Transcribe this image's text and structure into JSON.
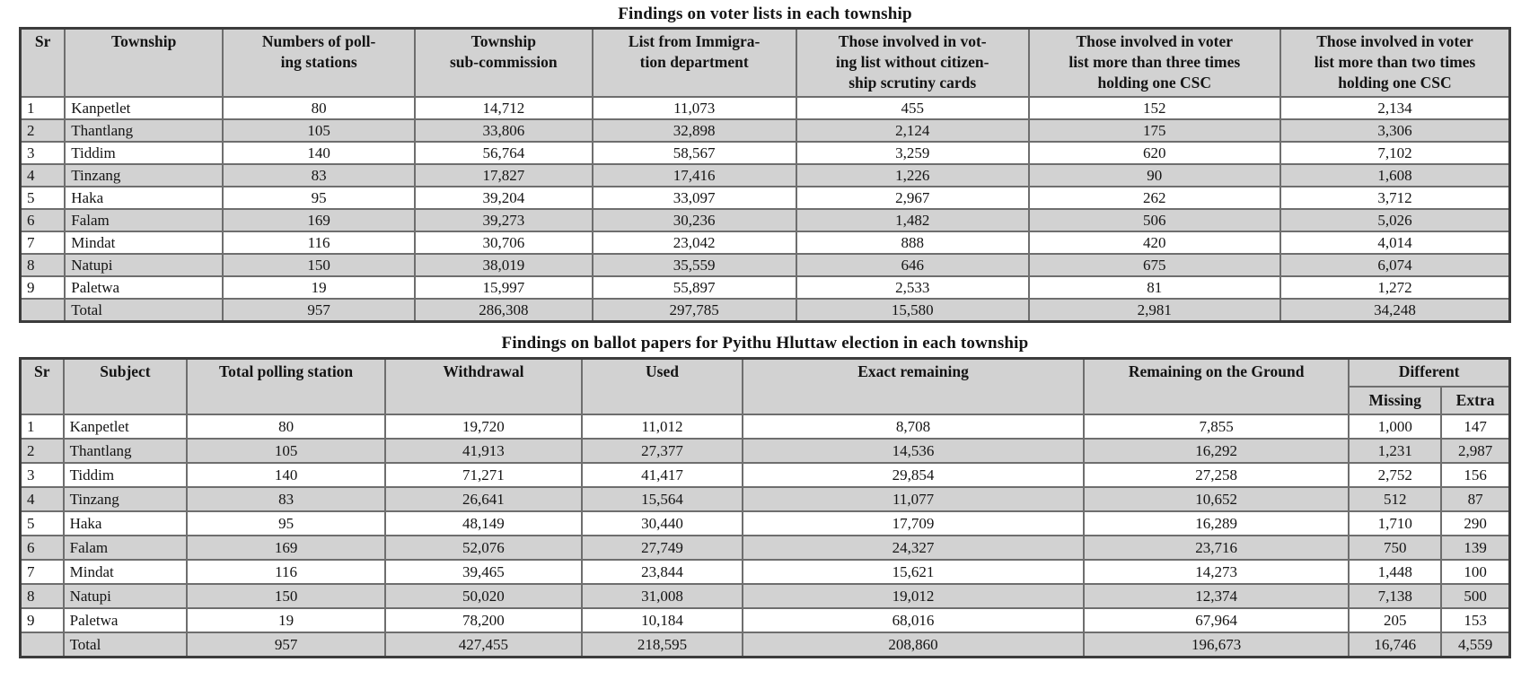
{
  "colors": {
    "page_background": "#ffffff",
    "header_background": "#d2d2d2",
    "stripe_background": "#d2d2d2",
    "inner_border": "#6e6e6e",
    "outer_border": "#3c3c3c",
    "text": "#141414"
  },
  "voter_table": {
    "title": "Findings on voter lists in each township",
    "headers": [
      "Sr",
      "Township",
      "Numbers of poll-\ning stations",
      "Township\nsub-commission",
      "List from Immigra-\ntion department",
      "Those involved in vot-\ning list without citizen-\nship scrutiny cards",
      "Those involved in voter\nlist more than three times\nholding one CSC",
      "Those involved in voter\nlist more than two times\nholding one CSC"
    ],
    "rows": [
      [
        "1",
        "Kanpetlet",
        "80",
        "14,712",
        "11,073",
        "455",
        "152",
        "2,134"
      ],
      [
        "2",
        "Thantlang",
        "105",
        "33,806",
        "32,898",
        "2,124",
        "175",
        "3,306"
      ],
      [
        "3",
        "Tiddim",
        "140",
        "56,764",
        "58,567",
        "3,259",
        "620",
        "7,102"
      ],
      [
        "4",
        "Tinzang",
        "83",
        "17,827",
        "17,416",
        "1,226",
        "90",
        "1,608"
      ],
      [
        "5",
        "Haka",
        "95",
        "39,204",
        "33,097",
        "2,967",
        "262",
        "3,712"
      ],
      [
        "6",
        "Falam",
        "169",
        "39,273",
        "30,236",
        "1,482",
        "506",
        "5,026"
      ],
      [
        "7",
        "Mindat",
        "116",
        "30,706",
        "23,042",
        "888",
        "420",
        "4,014"
      ],
      [
        "8",
        "Natupi",
        "150",
        "38,019",
        "35,559",
        "646",
        "675",
        "6,074"
      ],
      [
        "9",
        "Paletwa",
        "19",
        "15,997",
        "55,897",
        "2,533",
        "81",
        "1,272"
      ]
    ],
    "total_row": [
      "",
      "Total",
      "957",
      "286,308",
      "297,785",
      "15,580",
      "2,981",
      "34,248"
    ]
  },
  "ballot_table": {
    "title": "Findings on ballot papers for Pyithu Hluttaw election in each township",
    "headers_row1": [
      "Sr",
      "Subject",
      "Total polling station",
      "Withdrawal",
      "Used",
      "Exact remaining",
      "Remaining on the Ground",
      "Different"
    ],
    "headers_row2": [
      "Missing",
      "Extra"
    ],
    "rows": [
      [
        "1",
        "Kanpetlet",
        "80",
        "19,720",
        "11,012",
        "8,708",
        "7,855",
        "1,000",
        "147"
      ],
      [
        "2",
        "Thantlang",
        "105",
        "41,913",
        "27,377",
        "14,536",
        "16,292",
        "1,231",
        "2,987"
      ],
      [
        "3",
        "Tiddim",
        "140",
        "71,271",
        "41,417",
        "29,854",
        "27,258",
        "2,752",
        "156"
      ],
      [
        "4",
        "Tinzang",
        "83",
        "26,641",
        "15,564",
        "11,077",
        "10,652",
        "512",
        "87"
      ],
      [
        "5",
        "Haka",
        "95",
        "48,149",
        "30,440",
        "17,709",
        "16,289",
        "1,710",
        "290"
      ],
      [
        "6",
        "Falam",
        "169",
        "52,076",
        "27,749",
        "24,327",
        "23,716",
        "750",
        "139"
      ],
      [
        "7",
        "Mindat",
        "116",
        "39,465",
        "23,844",
        "15,621",
        "14,273",
        "1,448",
        "100"
      ],
      [
        "8",
        "Natupi",
        "150",
        "50,020",
        "31,008",
        "19,012",
        "12,374",
        "7,138",
        "500"
      ],
      [
        "9",
        "Paletwa",
        "19",
        "78,200",
        "10,184",
        "68,016",
        "67,964",
        "205",
        "153"
      ]
    ],
    "total_row": [
      "",
      "Total",
      "957",
      "427,455",
      "218,595",
      "208,860",
      "196,673",
      "16,746",
      "4,559"
    ]
  }
}
